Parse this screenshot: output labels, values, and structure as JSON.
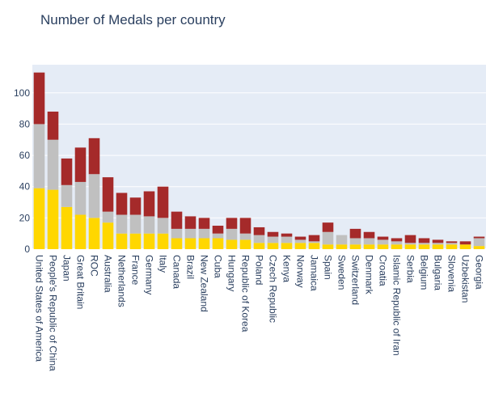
{
  "chart_data": {
    "type": "bar",
    "stacked": true,
    "title": "Number of Medals per country",
    "xlabel": "",
    "ylabel": "",
    "ylim": [
      0,
      118
    ],
    "yticks": [
      0,
      20,
      40,
      60,
      80,
      100
    ],
    "grid": true,
    "legend": "none",
    "categories": [
      "United States of America",
      "People's Republic of China",
      "Japan",
      "Great Britain",
      "ROC",
      "Australia",
      "Netherlands",
      "France",
      "Germany",
      "Italy",
      "Canada",
      "Brazil",
      "New Zealand",
      "Cuba",
      "Hungary",
      "Republic of Korea",
      "Poland",
      "Czech Republic",
      "Kenya",
      "Norway",
      "Jamaica",
      "Spain",
      "Sweden",
      "Switzerland",
      "Denmark",
      "Croatia",
      "Islamic Republic of Iran",
      "Serbia",
      "Belgium",
      "Bulgaria",
      "Slovenia",
      "Uzbekistan",
      "Georgia"
    ],
    "series": [
      {
        "color": "#ffd700",
        "values": [
          39,
          38,
          27,
          22,
          20,
          17,
          10,
          10,
          10,
          10,
          7,
          7,
          7,
          7,
          6,
          6,
          4,
          4,
          4,
          4,
          4,
          3,
          3,
          3,
          3,
          3,
          3,
          3,
          3,
          3,
          3,
          3,
          2
        ]
      },
      {
        "color": "#c0c0c0",
        "values": [
          41,
          32,
          14,
          21,
          28,
          7,
          12,
          12,
          11,
          10,
          6,
          6,
          6,
          3,
          7,
          4,
          5,
          4,
          4,
          2,
          1,
          8,
          6,
          4,
          4,
          3,
          2,
          1,
          1,
          1,
          1,
          0,
          5
        ]
      },
      {
        "color": "#a52a2a",
        "values": [
          33,
          18,
          17,
          22,
          23,
          22,
          14,
          11,
          16,
          20,
          11,
          8,
          7,
          5,
          7,
          10,
          5,
          3,
          2,
          2,
          4,
          6,
          0,
          6,
          4,
          2,
          2,
          5,
          3,
          2,
          1,
          2,
          1
        ]
      }
    ]
  }
}
